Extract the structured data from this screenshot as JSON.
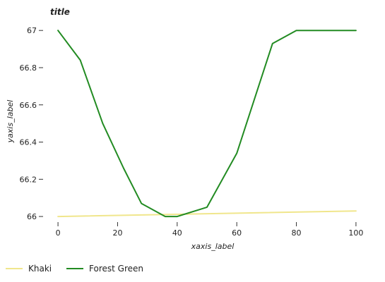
{
  "chart_data": {
    "type": "line",
    "title": "title",
    "xlabel": "xaxis_label",
    "ylabel": "yaxis_label",
    "xlim": [
      -5,
      105
    ],
    "ylim": [
      65.97,
      67.05
    ],
    "xticks": [
      0,
      20,
      40,
      60,
      80,
      100
    ],
    "yticks": [
      66.0,
      66.2,
      66.4,
      66.6,
      66.8,
      67.0
    ],
    "ytick_labels": [
      "66",
      "66.2",
      "66.4",
      "66.6",
      "66.8",
      "67"
    ],
    "grid": false,
    "legend_position": "bottom-left",
    "series": [
      {
        "name": "Khaki",
        "color": "#f0e68c",
        "x": [
          0,
          100
        ],
        "y": [
          66.0,
          66.03
        ]
      },
      {
        "name": "Forest Green",
        "color": "#228b22",
        "x": [
          0,
          7.5,
          15,
          22,
          28,
          36,
          40,
          50,
          60,
          72,
          80,
          90,
          100
        ],
        "y": [
          67.0,
          66.84,
          66.5,
          66.26,
          66.07,
          66.0,
          66.0,
          66.05,
          66.34,
          66.93,
          67.0,
          67.0,
          67.0
        ]
      }
    ]
  }
}
